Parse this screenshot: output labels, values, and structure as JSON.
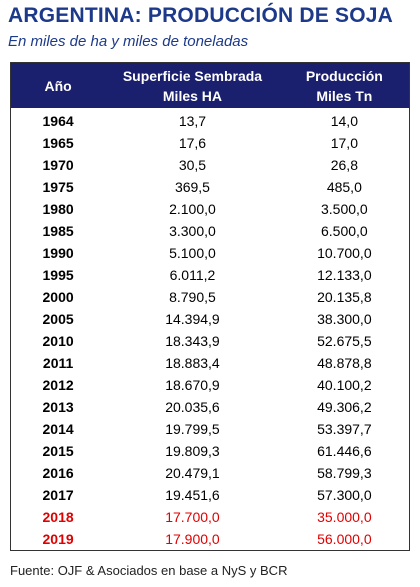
{
  "header": {
    "title": "ARGENTINA: PRODUCCIÓN DE SOJA",
    "subtitle": "En miles de ha y miles de toneladas"
  },
  "table": {
    "columns": [
      [
        "Año"
      ],
      [
        "Superficie Sembrada",
        "Miles HA"
      ],
      [
        "Producción",
        "Miles Tn"
      ]
    ],
    "rows": [
      [
        "1964",
        "13,7",
        "14,0"
      ],
      [
        "1965",
        "17,6",
        "17,0"
      ],
      [
        "1970",
        "30,5",
        "26,8"
      ],
      [
        "1975",
        "369,5",
        "485,0"
      ],
      [
        "1980",
        "2.100,0",
        "3.500,0"
      ],
      [
        "1985",
        "3.300,0",
        "6.500,0"
      ],
      [
        "1990",
        "5.100,0",
        "10.700,0"
      ],
      [
        "1995",
        "6.011,2",
        "12.133,0"
      ],
      [
        "2000",
        "8.790,5",
        "20.135,8"
      ],
      [
        "2005",
        "14.394,9",
        "38.300,0"
      ],
      [
        "2010",
        "18.343,9",
        "52.675,5"
      ],
      [
        "2011",
        "18.883,4",
        "48.878,8"
      ],
      [
        "2012",
        "18.670,9",
        "40.100,2"
      ],
      [
        "2013",
        "20.035,6",
        "49.306,2"
      ],
      [
        "2014",
        "19.799,5",
        "53.397,7"
      ],
      [
        "2015",
        "19.809,3",
        "61.446,6"
      ],
      [
        "2016",
        "20.479,1",
        "58.799,3"
      ],
      [
        "2017",
        "19.451,6",
        "57.300,0"
      ],
      [
        "2018",
        "17.700,0",
        "35.000,0"
      ],
      [
        "2019",
        "17.900,0",
        "56.000,0"
      ]
    ]
  },
  "footer": "Fuente: OJF & Asociados en base a NyS y BCR"
}
